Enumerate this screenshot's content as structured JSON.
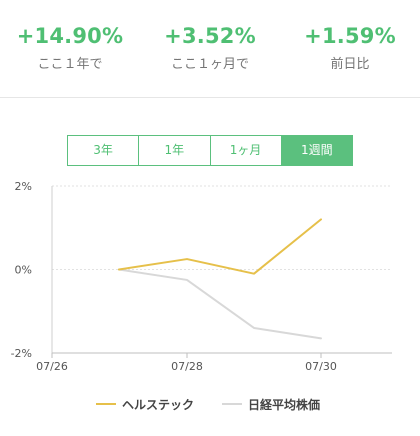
{
  "stats": [
    {
      "value": "+14.90%",
      "label": "ここ１年で"
    },
    {
      "value": "+3.52%",
      "label": "ここ１ヶ月で"
    },
    {
      "value": "+1.59%",
      "label": "前日比"
    }
  ],
  "tabs": [
    {
      "label": "3年",
      "active": false
    },
    {
      "label": "1年",
      "active": false
    },
    {
      "label": "1ヶ月",
      "active": false
    },
    {
      "label": "1週間",
      "active": true
    }
  ],
  "colors": {
    "accent": "#4fbf73",
    "series_health": "#e6c04a",
    "series_nikkei": "#d8d8d8"
  },
  "chart_data": {
    "type": "line",
    "x": [
      "07/27",
      "07/28",
      "07/29",
      "07/30"
    ],
    "xticks": [
      "07/26",
      "07/28",
      "07/30"
    ],
    "ylim": [
      -2,
      2
    ],
    "yticks": [
      {
        "value": 2,
        "label": "2%"
      },
      {
        "value": 0,
        "label": "0%"
      },
      {
        "value": -2,
        "label": "-2%"
      }
    ],
    "grid": true,
    "legend_position": "bottom",
    "series": [
      {
        "name": "ヘルステック",
        "color": "#e6c04a",
        "values": [
          0,
          0.25,
          -0.1,
          1.2
        ]
      },
      {
        "name": "日経平均株価",
        "color": "#d8d8d8",
        "values": [
          0,
          -0.25,
          -1.4,
          -1.65
        ]
      }
    ]
  }
}
